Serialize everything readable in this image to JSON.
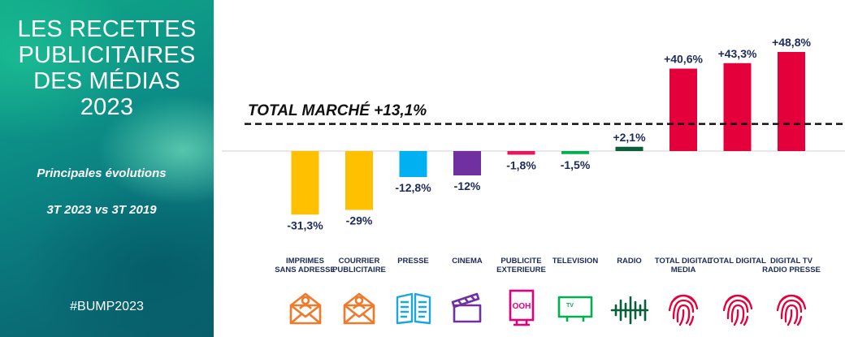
{
  "sidebar": {
    "title_lines": [
      "LES RECETTES",
      "PUBLICITAIRES",
      "DES MÉDIAS",
      "2023"
    ],
    "subtitle": "Principales évolutions",
    "period": "3T 2023 vs 3T 2019",
    "hashtag": "#BUMP2023"
  },
  "chart_data": {
    "type": "bar",
    "title": "LES RECETTES PUBLICITAIRES DES MÉDIAS 2023",
    "categories": [
      [
        "IMPRIMES",
        "SANS ADRESSE"
      ],
      [
        "COURRIER",
        "PUBLICITAIRE"
      ],
      [
        "PRESSE"
      ],
      [
        "CINEMA"
      ],
      [
        "PUBLICITE",
        "EXTERIEURE"
      ],
      [
        "TELEVISION"
      ],
      [
        "RADIO"
      ],
      [
        "TOTAL DIGITAL",
        "MEDIA"
      ],
      [
        "TOTAL DIGITAL"
      ],
      [
        "DIGITAL TV",
        "RADIO PRESSE"
      ]
    ],
    "values": [
      -31.3,
      -29,
      -12.8,
      -12,
      -1.8,
      -1.5,
      2.1,
      40.6,
      43.3,
      48.8
    ],
    "value_labels": [
      "-31,3%",
      "-29%",
      "-12,8%",
      "-12%",
      "-1,8%",
      "-1,5%",
      "+2,1%",
      "+40,6%",
      "+43,3%",
      "+48,8%"
    ],
    "colors": [
      "#ffc000",
      "#ffc000",
      "#00b0f0",
      "#7030a0",
      "#e8175d",
      "#00b050",
      "#0b5e3c",
      "#e4003a",
      "#e4003a",
      "#e4003a"
    ],
    "icons": [
      "mail-person-icon",
      "mail-person-icon",
      "newspaper-icon",
      "clapperboard-icon",
      "billboard-ooh-icon",
      "tv-icon",
      "radio-wave-icon",
      "fingerprint-icon",
      "fingerprint-icon",
      "fingerprint-icon"
    ],
    "icon_colors": [
      "#f07a2a",
      "#f07a2a",
      "#1ba6e0",
      "#7030a0",
      "#e4007c",
      "#00b050",
      "#0b5e3c",
      "#e4003a",
      "#e4003a",
      "#e4003a"
    ],
    "reference_line": {
      "label": "TOTAL MARCHÉ +13,1%",
      "value": 13.1,
      "style": "dashed"
    },
    "ylim": [
      -40,
      55
    ],
    "grid": false
  }
}
